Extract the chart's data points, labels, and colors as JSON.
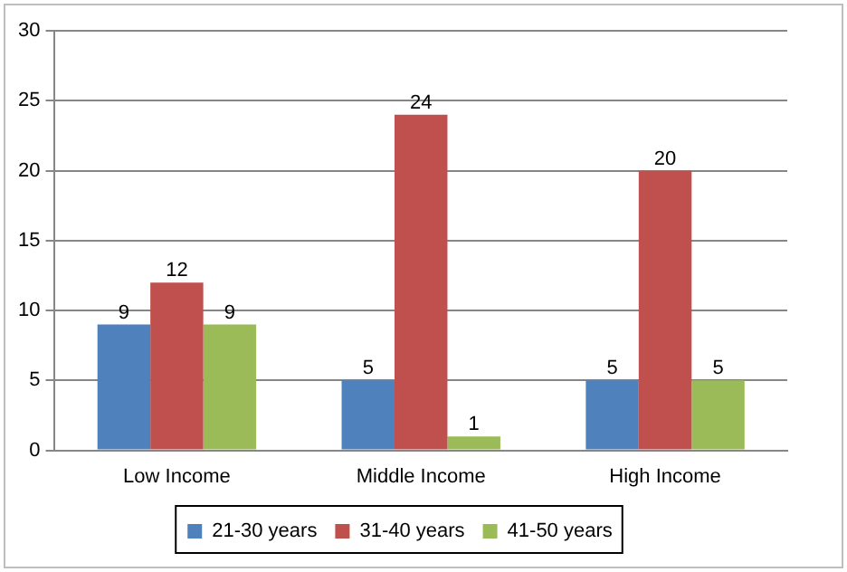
{
  "chart_data": {
    "type": "bar",
    "categories": [
      "Low Income",
      "Middle Income",
      "High Income"
    ],
    "series": [
      {
        "name": "21-30 years",
        "color": "#4f81bd",
        "values": [
          9,
          5,
          5
        ]
      },
      {
        "name": "31-40 years",
        "color": "#c0504d",
        "values": [
          12,
          24,
          20
        ]
      },
      {
        "name": "41-50 years",
        "color": "#9bbb59",
        "values": [
          9,
          1,
          5
        ]
      }
    ],
    "ylim": [
      0,
      30
    ],
    "yticks": [
      0,
      5,
      10,
      15,
      20,
      25,
      30
    ],
    "grid": "y",
    "legend": "bottom",
    "data_labels": true
  }
}
